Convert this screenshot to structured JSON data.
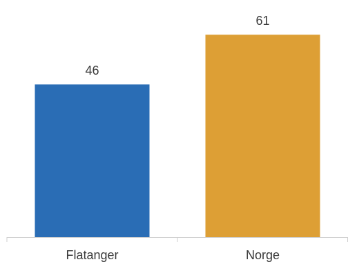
{
  "chart_data": {
    "type": "bar",
    "categories": [
      "Flatanger",
      "Norge"
    ],
    "values": [
      46,
      61
    ],
    "colors": [
      "#2a6db5",
      "#dd9f35"
    ],
    "title": "",
    "xlabel": "",
    "ylabel": "",
    "ylim": [
      0,
      70
    ],
    "grid": false,
    "data_labels": [
      "46",
      "61"
    ]
  }
}
